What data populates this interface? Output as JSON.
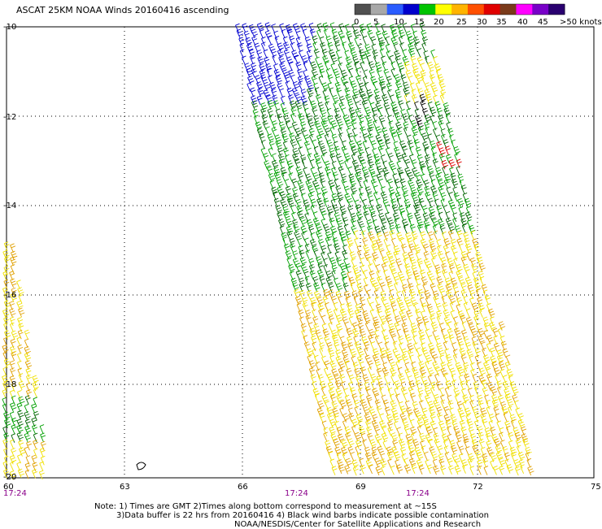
{
  "title": "ASCAT 25KM NOAA Winds 20160416 ascending",
  "lat_labels": [
    "-10",
    "-12",
    "-14",
    "-16",
    "-18",
    "-20"
  ],
  "lon_labels": [
    "60",
    "63",
    "66",
    "69",
    "72",
    "75"
  ],
  "time_labels": [
    "17:24",
    "17:24",
    "17:24"
  ],
  "legend": {
    "values": [
      "0",
      "5",
      "10",
      "15",
      "20",
      "25",
      "30",
      "35",
      "40",
      "45",
      ">50 knots"
    ],
    "colors": [
      "#505050",
      "#a8a8a8",
      "#2a5cff",
      "#0000cc",
      "#00c400",
      "#ffff00",
      "#ffb400",
      "#ff5000",
      "#e00000",
      "#7a3a1a",
      "#ff00ff",
      "#7800c8",
      "#2a0070"
    ]
  },
  "wind_colors": {
    "blue": "#0000d0",
    "green": "#00a000",
    "dark_green": "#006400",
    "yellow": "#f0e000",
    "orange": "#e0a000",
    "black": "#000000",
    "red": "#e00000"
  },
  "notes": {
    "line1": "Note: 1) Times are GMT 2)Times along bottom correspond to measurement at ~15S",
    "line2": "3)Data buffer is 22 hrs from 20160416 4) Black wind barbs indicate possible contamination",
    "line3": "NOAA/NESDIS/Center for Satellite Applications and Research"
  }
}
